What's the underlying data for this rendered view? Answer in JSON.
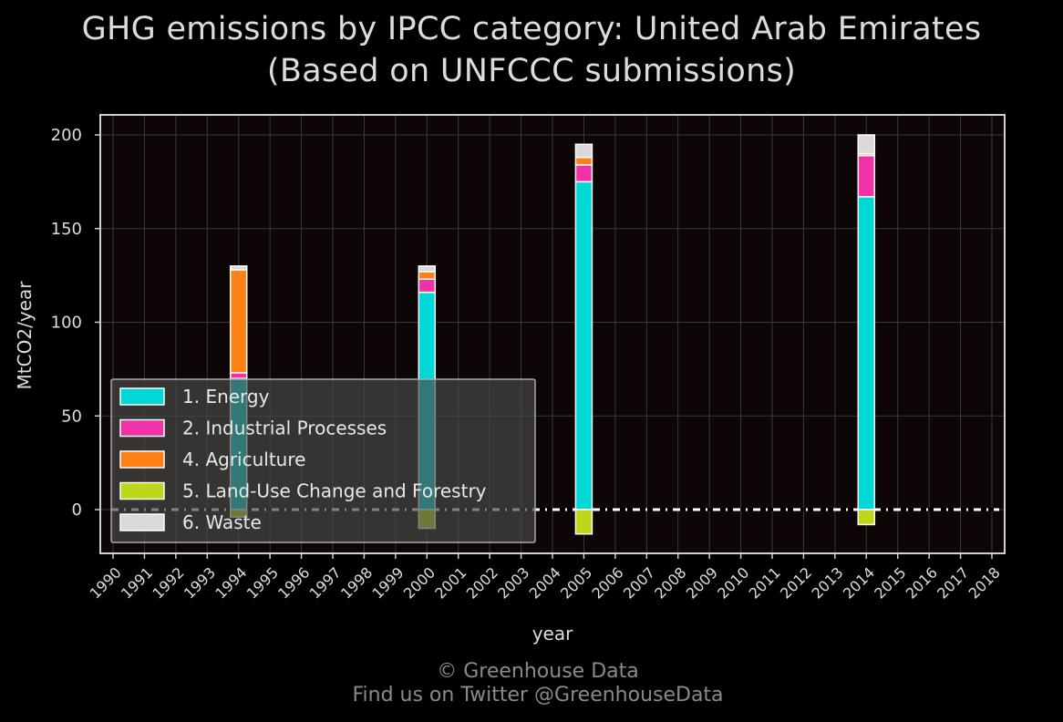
{
  "chart_data": {
    "type": "bar",
    "stacked": true,
    "title": "GHG emissions by IPCC category: United Arab Emirates",
    "subtitle": "(Based on UNFCCC submissions)",
    "xlabel": "year",
    "ylabel": "MtCO2/year",
    "ylim": [
      -25,
      210
    ],
    "yticks": [
      0,
      50,
      100,
      150,
      200
    ],
    "categories": [
      "1990",
      "1991",
      "1992",
      "1993",
      "1994",
      "1995",
      "1996",
      "1997",
      "1998",
      "1999",
      "2000",
      "2001",
      "2002",
      "2003",
      "2004",
      "2005",
      "2006",
      "2007",
      "2008",
      "2009",
      "2010",
      "2011",
      "2012",
      "2013",
      "2014",
      "2015",
      "2016",
      "2017",
      "2018"
    ],
    "grid": true,
    "legend_position": "lower-left",
    "series": [
      {
        "name": "1. Energy",
        "color": "#00d8d8",
        "values": [
          null,
          null,
          null,
          null,
          70,
          null,
          null,
          null,
          null,
          null,
          116,
          null,
          null,
          null,
          null,
          175,
          null,
          null,
          null,
          null,
          null,
          null,
          null,
          null,
          167,
          null,
          null,
          null,
          null
        ]
      },
      {
        "name": "2. Industrial Processes",
        "color": "#f032a8",
        "values": [
          null,
          null,
          null,
          null,
          3,
          null,
          null,
          null,
          null,
          null,
          7,
          null,
          null,
          null,
          null,
          9,
          null,
          null,
          null,
          null,
          null,
          null,
          null,
          null,
          22,
          null,
          null,
          null,
          null
        ]
      },
      {
        "name": "4. Agriculture",
        "color": "#ff8014",
        "values": [
          null,
          null,
          null,
          null,
          55,
          null,
          null,
          null,
          null,
          null,
          4,
          null,
          null,
          null,
          null,
          4,
          null,
          null,
          null,
          null,
          null,
          null,
          null,
          null,
          1,
          null,
          null,
          null,
          null
        ]
      },
      {
        "name": "5. Land-Use Change and Forestry",
        "color": "#bcd818",
        "values": [
          null,
          null,
          null,
          null,
          -4,
          null,
          null,
          null,
          null,
          null,
          -10,
          null,
          null,
          null,
          null,
          -13,
          null,
          null,
          null,
          null,
          null,
          null,
          null,
          null,
          -8,
          null,
          null,
          null,
          null
        ]
      },
      {
        "name": "6. Waste",
        "color": "#d9d9d9",
        "values": [
          null,
          null,
          null,
          null,
          2,
          null,
          null,
          null,
          null,
          null,
          3,
          null,
          null,
          null,
          null,
          7,
          null,
          null,
          null,
          null,
          null,
          null,
          null,
          null,
          10,
          null,
          null,
          null,
          null
        ]
      }
    ]
  },
  "footer": {
    "line1": "© Greenhouse Data",
    "line2": "Find us on Twitter @GreenhouseData"
  }
}
